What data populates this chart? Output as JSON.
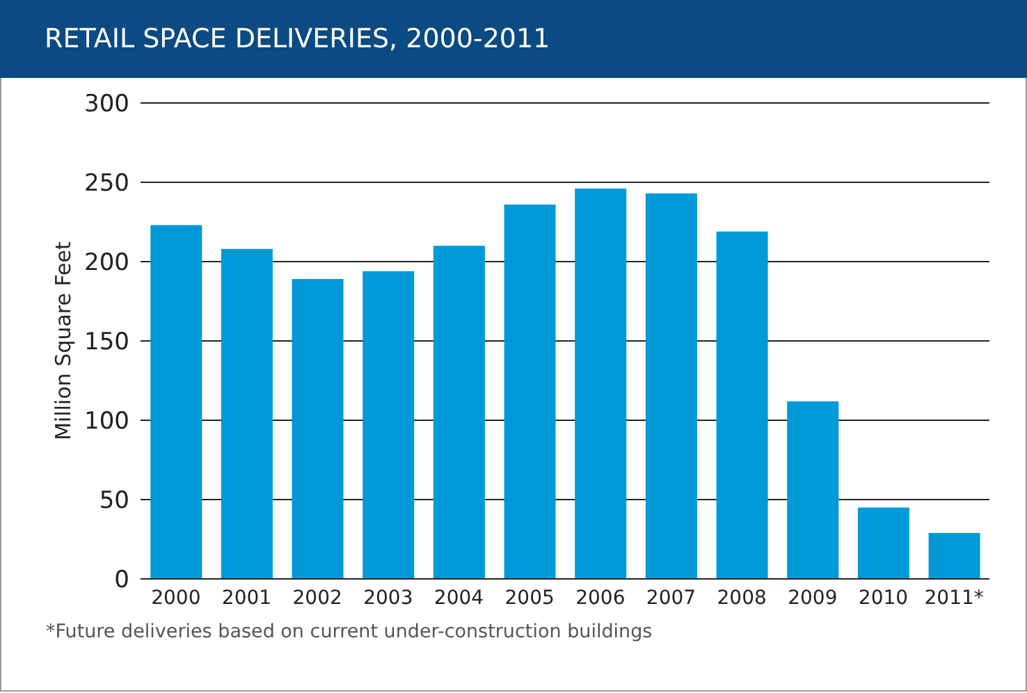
{
  "chart_data": {
    "type": "bar",
    "title": "RETAIL SPACE DELIVERIES, 2000-2011",
    "ylabel": "Million Square Feet",
    "categories": [
      "2000",
      "2001",
      "2002",
      "2003",
      "2004",
      "2005",
      "2006",
      "2007",
      "2008",
      "2009",
      "2010",
      "2011*"
    ],
    "values": [
      223,
      208,
      189,
      194,
      210,
      236,
      246,
      243,
      219,
      112,
      45,
      29
    ],
    "color": "#0099d8",
    "ylim": [
      0,
      300
    ],
    "yticks": [
      0,
      50,
      100,
      150,
      200,
      250,
      300
    ],
    "grid": "y",
    "annotations": [
      "*Future deliveries based on current under-construction buildings"
    ]
  }
}
